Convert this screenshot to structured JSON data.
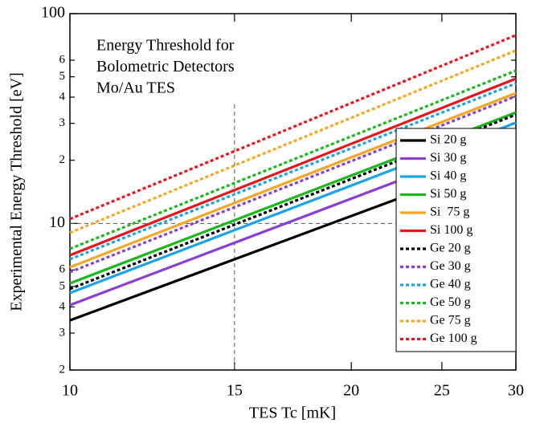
{
  "chart_data": {
    "type": "line",
    "annotation": [
      "Energy Threshold for",
      "Bolometric Detectors",
      "Mo/Au TES"
    ],
    "x_label": "TES Tc [mK]",
    "y_label": "Experimental Energy Threshold [eV]",
    "x_log": true,
    "y_log": true,
    "x": [
      10,
      30
    ],
    "xlim": [
      10,
      30
    ],
    "xticks": [
      10,
      15,
      20,
      25,
      30
    ],
    "ylim": [
      2,
      100
    ],
    "yticks": [
      2,
      3,
      4,
      5,
      6,
      10,
      {
        "value": 20,
        "label": "2"
      },
      {
        "value": 30,
        "label": "3"
      },
      {
        "value": 40,
        "label": "4"
      },
      {
        "value": 50,
        "label": "5"
      },
      {
        "value": 60,
        "label": "6"
      },
      100
    ],
    "reference_lines": {
      "x": 15,
      "y": 10
    },
    "legend": "lower right",
    "series": [
      {
        "name": "Si 20 g",
        "color": "#000000",
        "linestyle": "solid",
        "values": [
          3.45,
          21.2
        ]
      },
      {
        "name": "Si 30 g",
        "color": "#8a3fd0",
        "linestyle": "solid",
        "values": [
          4.08,
          26.0
        ]
      },
      {
        "name": "Si 40 g",
        "color": "#1aa3e8",
        "linestyle": "solid",
        "values": [
          4.66,
          30.2
        ]
      },
      {
        "name": "Si 50 g",
        "color": "#1bb81b",
        "linestyle": "solid",
        "values": [
          5.18,
          33.8
        ]
      },
      {
        "name": "Si  75 g",
        "color": "#f5a623",
        "linestyle": "solid",
        "values": [
          6.18,
          41.8
        ]
      },
      {
        "name": "Si 100 g",
        "color": "#e8161c",
        "linestyle": "solid",
        "values": [
          7.05,
          49.0
        ]
      },
      {
        "name": "Ge 20 g",
        "color": "#000000",
        "linestyle": "dotted",
        "values": [
          4.87,
          33.0
        ]
      },
      {
        "name": "Ge 30 g",
        "color": "#8a3fd0",
        "linestyle": "dotted",
        "values": [
          5.86,
          40.4
        ]
      },
      {
        "name": "Ge 40 g",
        "color": "#1aa3e8",
        "linestyle": "dotted",
        "values": [
          6.75,
          46.5
        ]
      },
      {
        "name": "Ge 50 g",
        "color": "#1bb81b",
        "linestyle": "dotted",
        "values": [
          7.57,
          53.5
        ]
      },
      {
        "name": "Ge 75 g",
        "color": "#f5a623",
        "linestyle": "dotted",
        "values": [
          9.03,
          66.7
        ]
      },
      {
        "name": "Ge 100 g",
        "color": "#e8161c",
        "linestyle": "dotted",
        "values": [
          10.5,
          78.9
        ]
      }
    ]
  }
}
